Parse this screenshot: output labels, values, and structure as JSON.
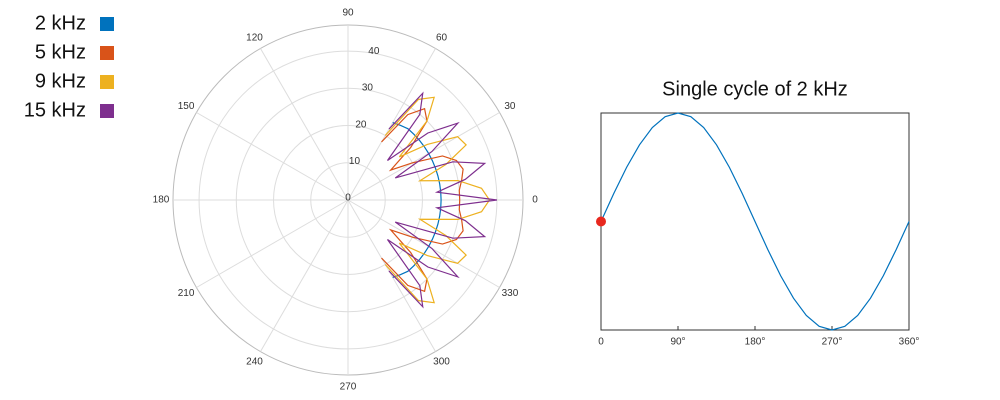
{
  "chart_data": [
    {
      "type": "polar",
      "x": [
        -60,
        -55,
        -50,
        -45,
        -40,
        -35,
        -30,
        -25,
        -20,
        -15,
        -10,
        -5,
        0,
        5,
        10,
        15,
        20,
        25,
        30,
        35,
        40,
        45,
        50,
        55,
        60
      ],
      "series": [
        {
          "name": "2 kHz",
          "color": "#0072bd",
          "values": [
            24,
            24.5,
            25,
            25,
            25,
            25,
            25,
            25,
            25,
            25,
            25,
            25,
            25,
            25,
            25,
            25,
            25,
            25,
            25,
            25,
            25,
            25,
            25,
            24.5,
            24
          ]
        },
        {
          "name": "5 kHz",
          "color": "#d95319",
          "values": [
            18,
            28,
            32,
            30,
            22,
            14,
            20,
            28,
            31,
            32,
            31,
            30,
            30,
            30,
            31,
            32,
            31,
            28,
            20,
            14,
            22,
            30,
            32,
            28,
            18
          ]
        },
        {
          "name": "9 kHz",
          "color": "#edb120",
          "values": [
            20,
            33,
            36,
            30,
            18,
            26,
            34,
            35,
            28,
            20,
            30,
            36,
            38,
            36,
            30,
            20,
            28,
            35,
            34,
            26,
            18,
            30,
            36,
            33,
            20
          ]
        },
        {
          "name": "15 kHz",
          "color": "#7e2f8e",
          "values": [
            22,
            35,
            30,
            15,
            28,
            36,
            26,
            14,
            30,
            38,
            32,
            24,
            40,
            24,
            32,
            38,
            30,
            14,
            26,
            36,
            28,
            15,
            30,
            35,
            22
          ]
        }
      ],
      "rlim": [
        0,
        47
      ],
      "rticks": [
        0,
        10,
        20,
        30,
        40
      ],
      "thetaticks": [
        0,
        30,
        60,
        90,
        120,
        150,
        180,
        210,
        240,
        270,
        300,
        330
      ],
      "grid": true
    },
    {
      "type": "line",
      "title": "Single cycle of 2 kHz",
      "x": [
        0,
        15,
        30,
        45,
        60,
        75,
        90,
        105,
        120,
        135,
        150,
        165,
        180,
        195,
        210,
        225,
        240,
        255,
        270,
        285,
        300,
        315,
        330,
        345,
        360
      ],
      "series": [
        {
          "color": "#0072bd",
          "values": [
            0,
            0.259,
            0.5,
            0.707,
            0.866,
            0.966,
            1,
            0.966,
            0.866,
            0.707,
            0.5,
            0.259,
            0,
            -0.259,
            -0.5,
            -0.707,
            -0.866,
            -0.966,
            -1,
            -0.966,
            -0.866,
            -0.707,
            -0.5,
            -0.259,
            0
          ]
        }
      ],
      "marker": {
        "x": 0,
        "y": 0,
        "color": "#e8281e"
      },
      "xlim": [
        0,
        360
      ],
      "ylim": [
        -1,
        1
      ],
      "xticks": [
        0,
        {
          "value": 90,
          "label": "90°"
        },
        {
          "value": 180,
          "label": "180°"
        },
        {
          "value": 270,
          "label": "270°"
        },
        {
          "value": 360,
          "label": "360°"
        }
      ]
    }
  ]
}
